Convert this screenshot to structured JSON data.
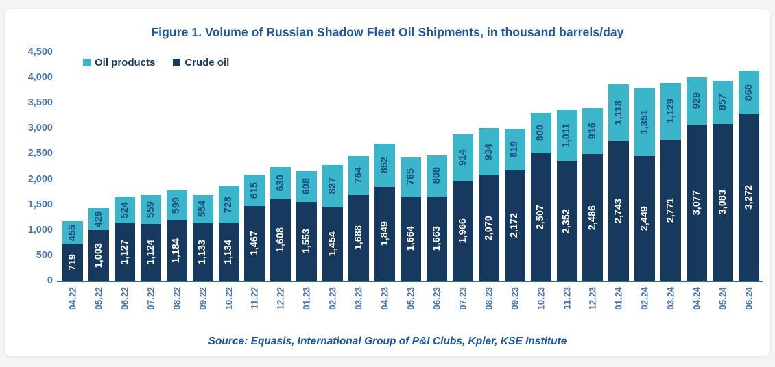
{
  "title": "Figure 1. Volume of Russian Shadow Fleet Oil Shipments, in thousand barrels/day",
  "source": "Source: Equasis, International Group of P&I Clubs, Kpler, KSE Institute",
  "legend": {
    "items": [
      {
        "label": "Oil products",
        "color": "#3ab5c9"
      },
      {
        "label": "Crude oil",
        "color": "#17395e"
      }
    ]
  },
  "colors": {
    "teal": "#3ab5c9",
    "navy": "#17395e",
    "title_blue": "#1b57a5",
    "tick_blue": "#4a76b8",
    "axis_line": "#2e6da4",
    "card_bg": "#ffffff",
    "page_bg": "#f3f4f6"
  },
  "chart_data": {
    "type": "bar",
    "stacked": true,
    "title": "Figure 1. Volume of Russian Shadow Fleet Oil Shipments, in thousand barrels/day",
    "xlabel": "",
    "ylabel": "",
    "ylim": [
      0,
      4500
    ],
    "ytick_step": 500,
    "grid": false,
    "legend_position": "top-left",
    "categories": [
      "04.22",
      "05.22",
      "06.22",
      "07.22",
      "08.22",
      "09.22",
      "10.22",
      "11.22",
      "12.22",
      "01.23",
      "02.23",
      "03.23",
      "04.23",
      "05.23",
      "06.23",
      "07.23",
      "08.23",
      "09.23",
      "10.23",
      "11.23",
      "12.23",
      "01.24",
      "02.24",
      "03.24",
      "04.24",
      "05.24",
      "06.24"
    ],
    "series": [
      {
        "name": "Crude oil",
        "color": "#17395e",
        "label_color": "#ffffff",
        "values": [
          719,
          1003,
          1127,
          1124,
          1184,
          1133,
          1134,
          1467,
          1608,
          1553,
          1454,
          1688,
          1849,
          1664,
          1663,
          1966,
          2070,
          2172,
          2507,
          2352,
          2486,
          2743,
          2449,
          2771,
          3077,
          3083,
          3272
        ]
      },
      {
        "name": "Oil products",
        "color": "#3ab5c9",
        "label_color": "#1d4e86",
        "values": [
          455,
          429,
          524,
          559,
          599,
          554,
          728,
          615,
          630,
          608,
          827,
          764,
          852,
          765,
          808,
          914,
          934,
          819,
          800,
          1011,
          916,
          1118,
          1351,
          1129,
          929,
          857,
          868
        ]
      }
    ]
  }
}
